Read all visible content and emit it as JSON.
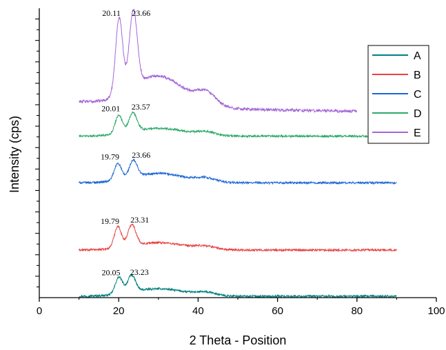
{
  "chart_data": {
    "type": "line",
    "title": "",
    "xlabel": "2 Theta - Position",
    "ylabel": "Intensity (cps)",
    "xlim": [
      0,
      100
    ],
    "xticks": [
      0,
      20,
      40,
      60,
      80,
      100
    ],
    "y_tick_labels_shown": false,
    "y_minor_ticks": 26,
    "grid": false,
    "legend_position": "top-right",
    "series": [
      {
        "name": "A",
        "color": "#008080",
        "x_range": [
          10,
          90
        ],
        "baseline": 0.3,
        "peak1": {
          "x": 20.05,
          "h": 3.6
        },
        "peak2": {
          "x": 23.23,
          "h": 3.6
        },
        "hump": {
          "x": 30,
          "h": 1.6
        },
        "tail": 0.0,
        "noise": 0.22,
        "peak_labels": [
          {
            "text": "20.05",
            "x": 20.05,
            "y": 4.8
          },
          {
            "text": "23.23",
            "x": 23.23,
            "y": 4.9
          }
        ]
      },
      {
        "name": "B",
        "color": "#e84040",
        "x_range": [
          10,
          90
        ],
        "baseline": 10.2,
        "peak1": {
          "x": 19.79,
          "h": 4.6
        },
        "peak2": {
          "x": 23.31,
          "h": 4.6
        },
        "hump": {
          "x": 30,
          "h": 1.6
        },
        "tail": 0.0,
        "noise": 0.22,
        "peak_labels": [
          {
            "text": "19.79",
            "x": 19.79,
            "y": 15.8
          },
          {
            "text": "23.31",
            "x": 23.31,
            "y": 16.1
          }
        ]
      },
      {
        "name": "C",
        "color": "#1a66d6",
        "x_range": [
          10,
          90
        ],
        "baseline": 24.6,
        "peak1": {
          "x": 19.79,
          "h": 3.6
        },
        "peak2": {
          "x": 23.66,
          "h": 3.6
        },
        "hump": {
          "x": 30,
          "h": 2.0
        },
        "tail": 0.0,
        "noise": 0.22,
        "peak_labels": [
          {
            "text": "19.79",
            "x": 19.79,
            "y": 29.6
          },
          {
            "text": "23.66",
            "x": 23.66,
            "y": 30.0
          }
        ]
      },
      {
        "name": "D",
        "color": "#2aa869",
        "x_range": [
          10,
          90
        ],
        "baseline": 34.6,
        "peak1": {
          "x": 20.01,
          "h": 4.0
        },
        "peak2": {
          "x": 23.57,
          "h": 4.0
        },
        "hump": {
          "x": 30,
          "h": 1.7
        },
        "tail": 0.0,
        "noise": 0.22,
        "peak_labels": [
          {
            "text": "20.01",
            "x": 20.01,
            "y": 39.9
          },
          {
            "text": "23.57",
            "x": 23.57,
            "y": 40.3
          }
        ]
      },
      {
        "name": "E",
        "color": "#a366d6",
        "x_range": [
          10,
          80
        ],
        "baseline": 39.5,
        "peak1": {
          "x": 20.11,
          "h": 16.5
        },
        "peak2": {
          "x": 23.66,
          "h": 16.5
        },
        "hump": {
          "x": 30,
          "h": 6.5
        },
        "tail": 2.5,
        "noise": 0.3,
        "peak_labels": [
          {
            "text": "20.11",
            "x": 20.11,
            "y": 60.4
          },
          {
            "text": "23.66",
            "x": 23.66,
            "y": 60.4
          }
        ]
      }
    ]
  }
}
